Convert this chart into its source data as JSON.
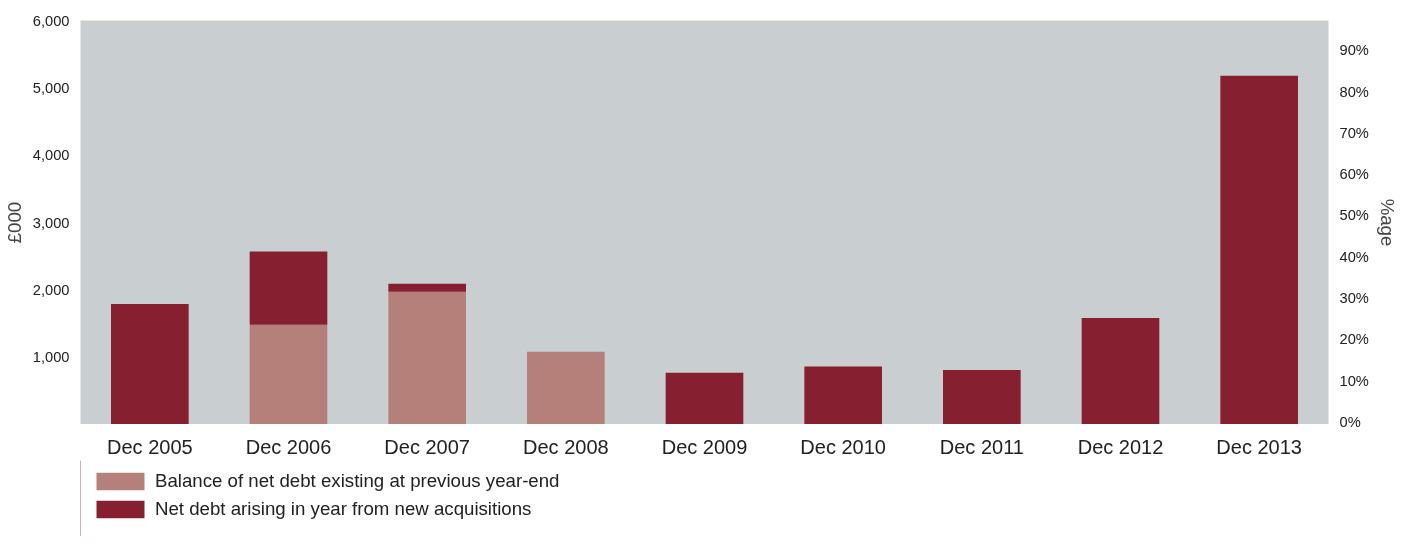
{
  "chart_data": {
    "type": "bar",
    "stacked": true,
    "ylabel": "£000",
    "y2label": "%age",
    "categories": [
      "Dec 2005",
      "Dec 2006",
      "Dec 2007",
      "Dec 2008",
      "Dec 2009",
      "Dec 2010",
      "Dec 2011",
      "Dec 2012",
      "Dec 2013"
    ],
    "series": [
      {
        "name": "Balance of net debt existing at previous year-end",
        "color": "#b5807a",
        "values": [
          0,
          1480,
          1970,
          1080,
          0,
          0,
          0,
          0,
          0
        ]
      },
      {
        "name": "Net debt arising in year from new acquisitions",
        "color": "#861f30",
        "values": [
          1790,
          1090,
          120,
          0,
          770,
          860,
          810,
          1580,
          5180
        ]
      }
    ],
    "ylim": [
      0,
      6000
    ],
    "yticks": [
      {
        "value": 1000,
        "label": "1,000"
      },
      {
        "value": 2000,
        "label": "2,000"
      },
      {
        "value": 3000,
        "label": "3,000"
      },
      {
        "value": 4000,
        "label": "4,000"
      },
      {
        "value": 5000,
        "label": "5,000"
      },
      {
        "value": 6000,
        "label": "6,000"
      }
    ],
    "y2lim": [
      -0.6,
      97.2
    ],
    "y2ticks": [
      {
        "value": 0,
        "label": "0%"
      },
      {
        "value": 10,
        "label": "10%"
      },
      {
        "value": 20,
        "label": "20%"
      },
      {
        "value": 30,
        "label": "30%"
      },
      {
        "value": 40,
        "label": "40%"
      },
      {
        "value": 50,
        "label": "50%"
      },
      {
        "value": 60,
        "label": "60%"
      },
      {
        "value": 70,
        "label": "70%"
      },
      {
        "value": 80,
        "label": "80%"
      },
      {
        "value": 90,
        "label": "90%"
      }
    ],
    "legend": "bottom left",
    "grid": false
  }
}
